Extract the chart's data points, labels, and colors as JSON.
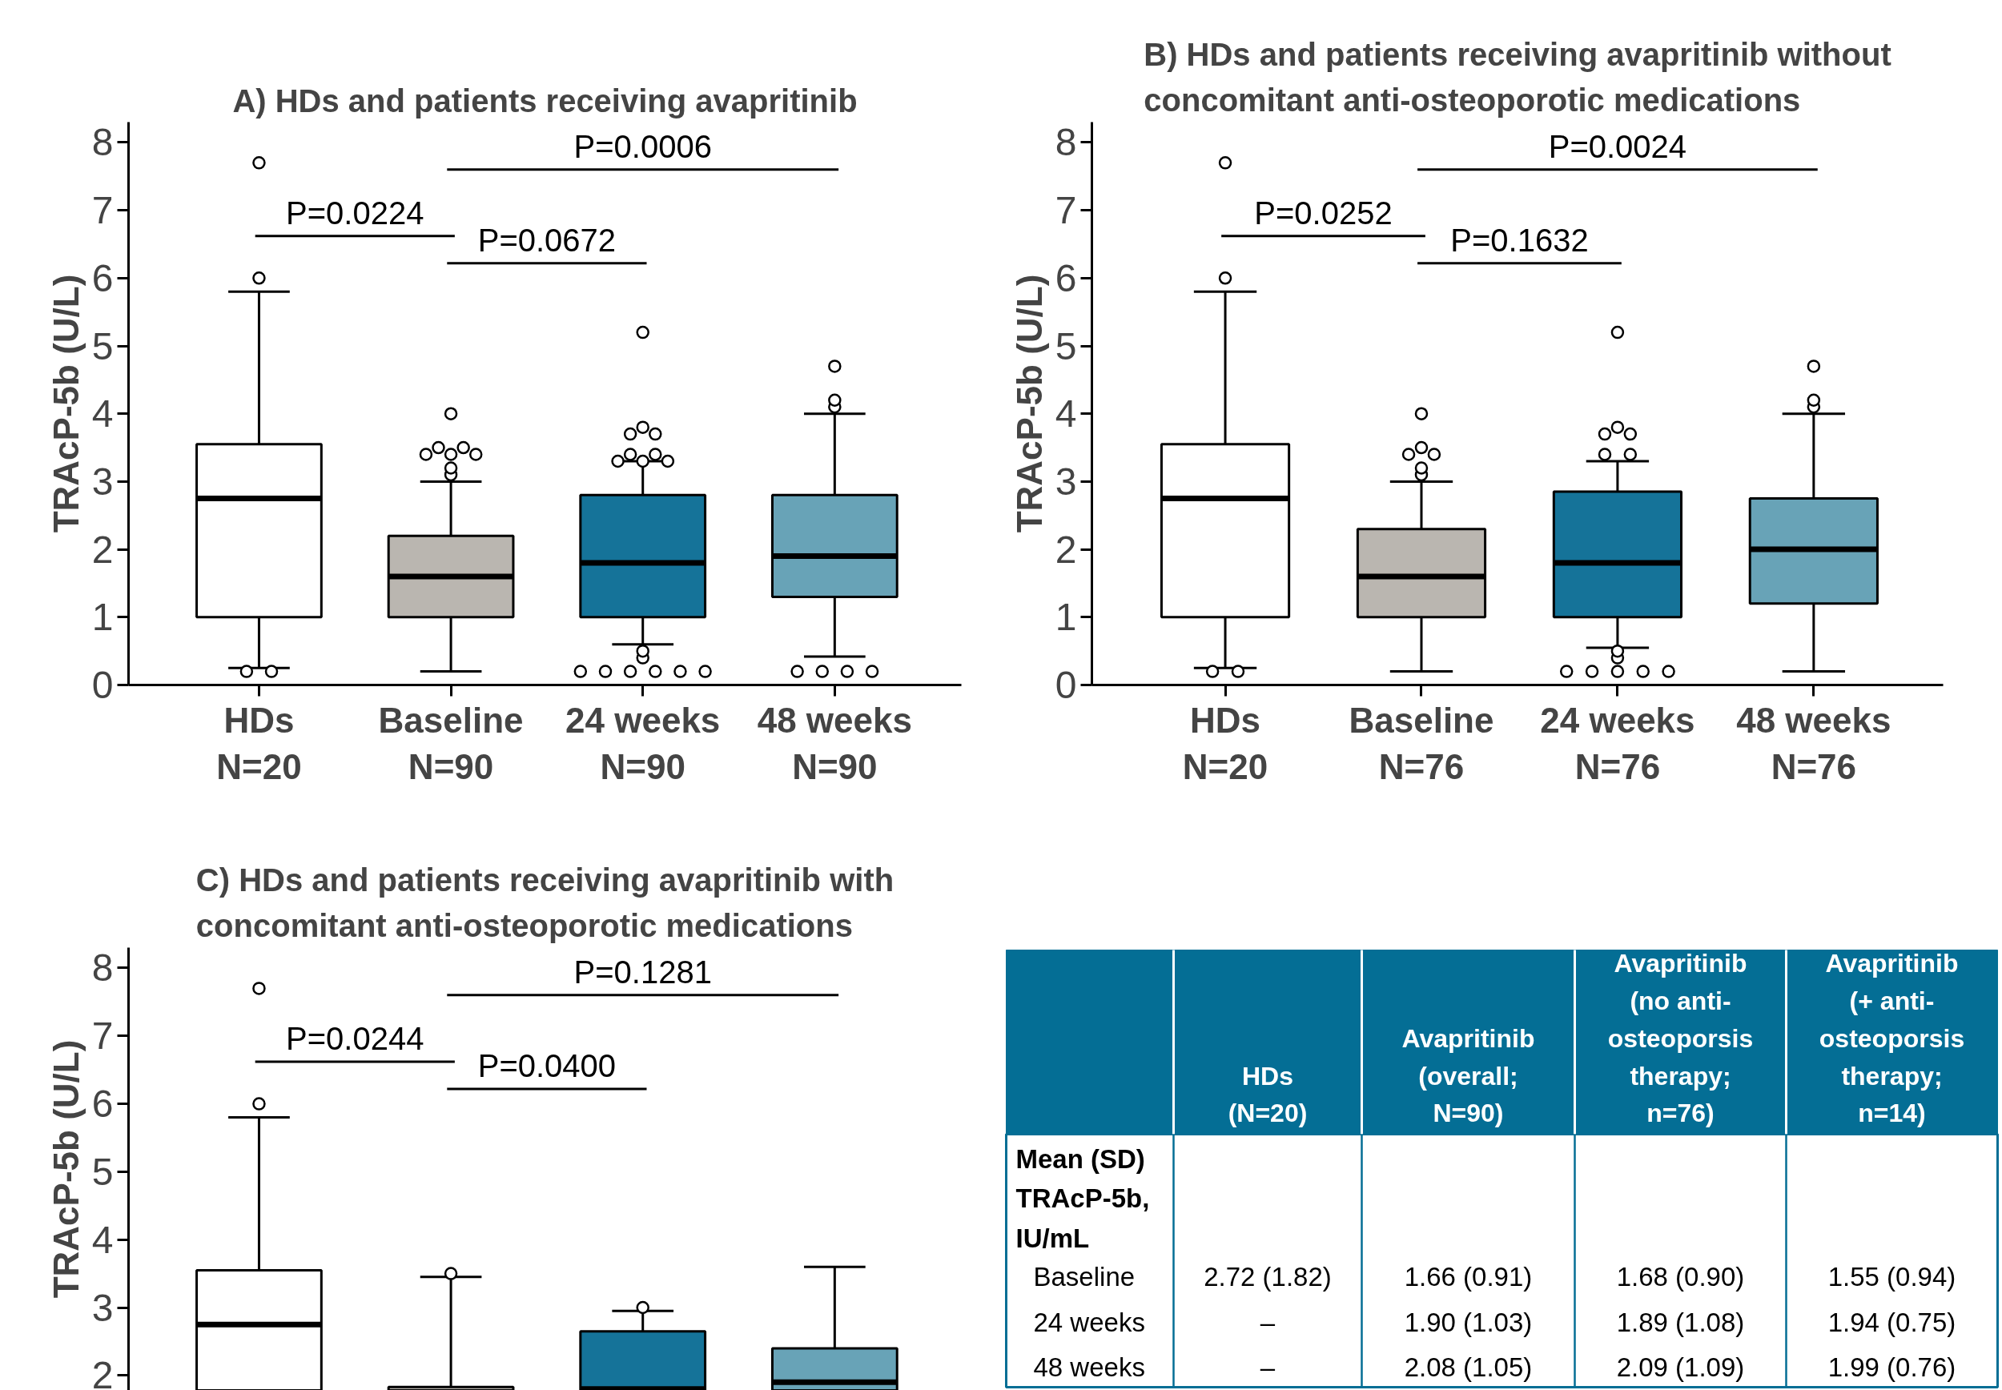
{
  "chart_data": [
    {
      "type": "box",
      "title": "A) HDs and patients receiving avapritinib",
      "ylabel": "TRAcP-5b (U/L)",
      "categories": [
        "HDs\nN=20",
        "Baseline\nN=90",
        "24 weeks\nN=90",
        "48 weeks\nN=90"
      ],
      "colors": [
        "#ffffff",
        "#bab6b0",
        "#157399",
        "#68a3b7"
      ],
      "boxes": [
        {
          "low": 0.25,
          "q1": 1.0,
          "median": 2.75,
          "q3": 3.55,
          "high": 5.8,
          "outliers": [
            7.7,
            6.0,
            0.2,
            0.2
          ]
        },
        {
          "low": 0.2,
          "q1": 1.0,
          "median": 1.6,
          "q3": 2.2,
          "high": 3.0,
          "outliers": [
            4.0,
            3.5,
            3.4,
            3.4,
            3.4,
            3.5,
            3.1,
            3.2
          ]
        },
        {
          "low": 0.6,
          "q1": 1.0,
          "median": 1.8,
          "q3": 2.8,
          "high": 3.3,
          "outliers": [
            5.2,
            3.8,
            3.7,
            3.7,
            3.4,
            3.3,
            3.3,
            3.3,
            3.4,
            0.4,
            0.5,
            0.2,
            0.2,
            0.2,
            0.2,
            0.2,
            0.2
          ]
        },
        {
          "low": 0.42,
          "q1": 1.3,
          "median": 1.9,
          "q3": 2.8,
          "high": 4.0,
          "outliers": [
            4.7,
            4.1,
            4.2,
            0.2,
            0.2,
            0.2,
            0.2
          ]
        }
      ],
      "ylim": [
        0,
        8.3
      ],
      "yticks": [
        0,
        1,
        2,
        3,
        4,
        5,
        6,
        7,
        8
      ],
      "annotations": [
        "P=0.0224",
        "P=0.0672",
        "P=0.0006"
      ]
    },
    {
      "type": "box",
      "title": "B) HDs and patients receiving avapritinib without\nconcomitant anti-osteoporotic medications",
      "ylabel": "TRAcP-5b (U/L)",
      "categories": [
        "HDs\nN=20",
        "Baseline\nN=76",
        "24 weeks\nN=76",
        "48 weeks\nN=76"
      ],
      "colors": [
        "#ffffff",
        "#bab6b0",
        "#157399",
        "#68a3b7"
      ],
      "boxes": [
        {
          "low": 0.25,
          "q1": 1.0,
          "median": 2.75,
          "q3": 3.55,
          "high": 5.8,
          "outliers": [
            7.7,
            6.0,
            0.2,
            0.2
          ]
        },
        {
          "low": 0.2,
          "q1": 1.0,
          "median": 1.6,
          "q3": 2.3,
          "high": 3.0,
          "outliers": [
            4.0,
            3.4,
            3.5,
            3.4,
            3.1,
            3.2
          ]
        },
        {
          "low": 0.55,
          "q1": 1.0,
          "median": 1.8,
          "q3": 2.85,
          "high": 3.3,
          "outliers": [
            5.2,
            3.7,
            3.7,
            3.8,
            3.4,
            3.4,
            0.4,
            0.5,
            0.2,
            0.2,
            0.2,
            0.2,
            0.2
          ]
        },
        {
          "low": 0.2,
          "q1": 1.2,
          "median": 2.0,
          "q3": 2.75,
          "high": 4.0,
          "outliers": [
            4.7,
            4.1,
            4.2
          ]
        }
      ],
      "ylim": [
        0,
        8.3
      ],
      "yticks": [
        0,
        1,
        2,
        3,
        4,
        5,
        6,
        7,
        8
      ],
      "annotations": [
        "P=0.0252",
        "P=0.1632",
        "P=0.0024"
      ]
    },
    {
      "type": "box",
      "title": "C) HDs and patients receiving avapritinib with\nconcomitant anti-osteoporotic medications",
      "ylabel": "TRAcP-5b (U/L)",
      "categories": [
        null,
        null,
        null,
        null
      ],
      "colors": [
        "#ffffff",
        "#bab6b0",
        "#157399",
        "#68a3b7"
      ],
      "boxes": [
        {
          "low": 1.78,
          "q1": 1.78,
          "median": 2.75,
          "q3": 3.55,
          "high": 5.8,
          "outliers": [
            7.7,
            6.0
          ]
        },
        {
          "low": 1.78,
          "q1": 1.78,
          "q3": 1.83,
          "high": 3.45,
          "outliers": [
            3.5
          ]
        },
        {
          "low": 1.78,
          "q1": 1.78,
          "median": 1.8,
          "q3": 2.65,
          "high": 2.95,
          "outliers": [
            3.0
          ]
        },
        {
          "low": 1.78,
          "q1": 1.78,
          "median": 1.9,
          "q3": 2.4,
          "high": 3.6
        }
      ],
      "ylim": [
        1.78,
        8.3
      ],
      "yticks": [
        2,
        3,
        4,
        5,
        6,
        7,
        8
      ],
      "tick_labels": "y",
      "annotations": [
        "P=0.0244",
        "P=0.0400",
        "P=0.1281"
      ]
    },
    {
      "type": "other",
      "colors": [
        "#046e95"
      ],
      "categories": [
        null,
        "HDs\n(N=20)",
        "Avapritinib\n(overall;\nN=90)",
        "Avapritinib\n(no anti-\nosteoporsis\ntherapy;\nn=76)",
        "Avapritinib\n(+ anti-\nosteoporsis\ntherapy;\nn=14)"
      ],
      "y_categories": [
        "Mean (SD)\nTRAcP-5b,\nIU/mL",
        "Baseline",
        "24 weeks",
        "48 weeks"
      ],
      "cell_labels": [
        [
          null,
          null,
          null,
          null
        ],
        [
          "2.72 (1.82)",
          "1.66 (0.91)",
          "1.68 (0.90)",
          "1.55 (0.94)"
        ],
        [
          "–",
          "1.90 (1.03)",
          "1.89 (1.08)",
          "1.94 (0.75)"
        ],
        [
          "–",
          "2.08 (1.05)",
          "2.09 (1.09)",
          "1.99 (0.76)"
        ]
      ]
    }
  ]
}
